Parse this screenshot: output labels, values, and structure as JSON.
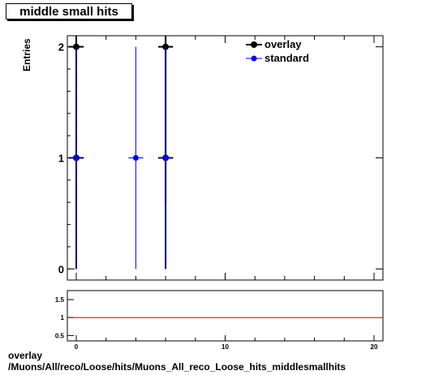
{
  "title": "middle small hits",
  "footer": {
    "line1": "overlay",
    "line2": "/Muons/All/reco/Loose/hits/Muons_All_reco_Loose_hits_middlesmallhits"
  },
  "colors": {
    "overlay": "#000000",
    "standard": "#0000ff",
    "ratio_line": "#cc0000"
  },
  "chart_data": [
    {
      "type": "scatter",
      "ylabel": "Entries",
      "xlim": [
        -0.6,
        20.6
      ],
      "ylim": [
        -0.1,
        2.1
      ],
      "yticks": [
        0,
        1,
        2
      ],
      "legend_position": "top-right",
      "series": [
        {
          "name": "overlay",
          "points": [
            {
              "x": 0,
              "y": 2,
              "xerr": 0.5,
              "yerr_low": 1.414,
              "yerr_high": 1.414
            },
            {
              "x": 0,
              "y": 1,
              "xerr": 0.5,
              "yerr_low": 1.0,
              "yerr_high": 1.0
            },
            {
              "x": 6,
              "y": 2,
              "xerr": 0.5,
              "yerr_low": 1.414,
              "yerr_high": 1.414
            },
            {
              "x": 6,
              "y": 1,
              "xerr": 0.5,
              "yerr_low": 1.0,
              "yerr_high": 1.0
            }
          ]
        },
        {
          "name": "standard",
          "points": [
            {
              "x": 0,
              "y": 1,
              "xerr": 0.5,
              "yerr_low": 1.0,
              "yerr_high": 1.0
            },
            {
              "x": 4,
              "y": 1,
              "xerr": 0.5,
              "yerr_low": 1.0,
              "yerr_high": 1.0
            },
            {
              "x": 6,
              "y": 1,
              "xerr": 0.5,
              "yerr_low": 1.0,
              "yerr_high": 1.0
            }
          ]
        }
      ]
    },
    {
      "type": "line",
      "xlim": [
        -0.6,
        20.6
      ],
      "ylim": [
        0.35,
        1.75
      ],
      "yticks": [
        0.5,
        1,
        1.5
      ],
      "ytick_labels": [
        "0.5",
        "1",
        "1.5"
      ],
      "xticks": [
        0,
        10,
        20
      ],
      "xtick_labels": [
        "0",
        "10",
        "20"
      ],
      "reference_line": 1
    }
  ]
}
